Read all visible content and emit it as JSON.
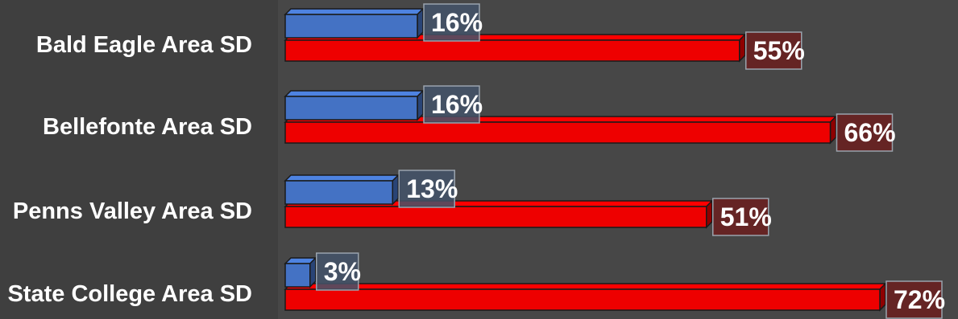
{
  "colors": {
    "background": "#3f3f3f",
    "plot_background": "#474747",
    "series_blue": "#4472c4",
    "series_red": "#ee0000",
    "label_box_blue": "#44546a",
    "label_box_red": "#6b1e1e"
  },
  "chart_data": {
    "type": "bar",
    "orientation": "horizontal",
    "style": "3d-clustered",
    "categories": [
      "Bald Eagle Area SD",
      "Bellefonte Area SD",
      "Penns Valley Area SD",
      "State College Area SD"
    ],
    "series": [
      {
        "color": "#4472c4",
        "values": [
          16,
          16,
          13,
          3
        ],
        "labels": [
          "16%",
          "16%",
          "13%",
          "3%"
        ]
      },
      {
        "color": "#ee0000",
        "values": [
          55,
          66,
          51,
          72
        ],
        "labels": [
          "55%",
          "66%",
          "51%",
          "72%"
        ]
      }
    ],
    "title": "",
    "xlabel": "",
    "ylabel": "",
    "unit": "%",
    "xlim": [
      0,
      100
    ],
    "grid": false,
    "legend": "none"
  }
}
